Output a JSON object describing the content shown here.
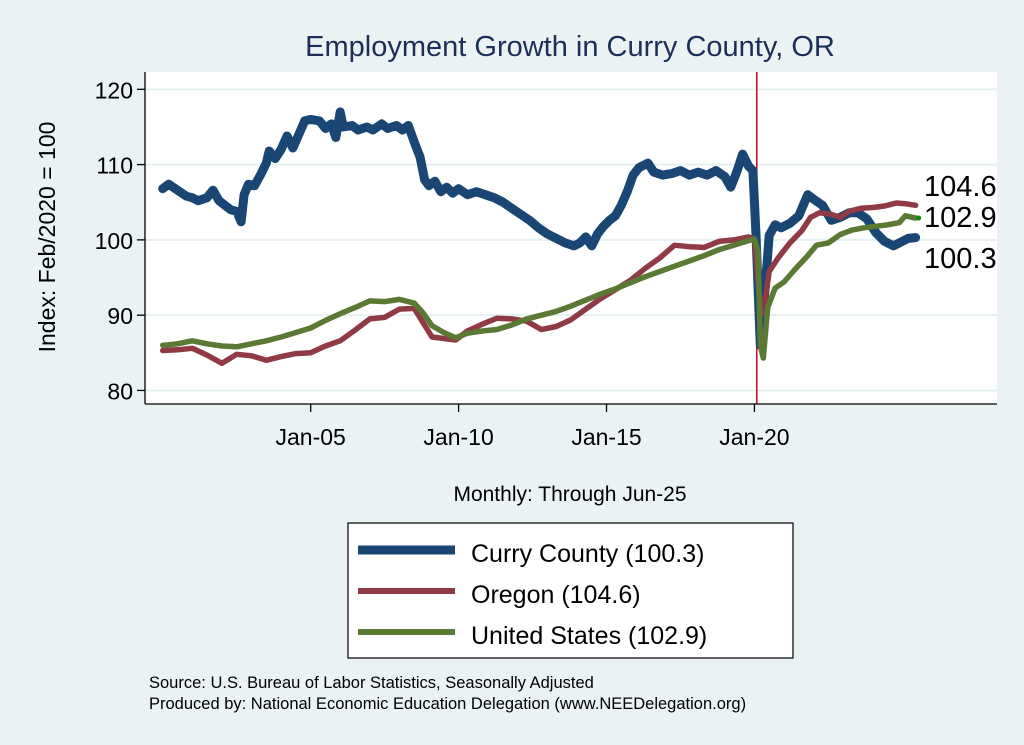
{
  "chart_data": {
    "type": "line",
    "title": "Employment Growth in Curry  County, OR",
    "xlabel": "Monthly: Through Jun-25",
    "ylabel": "Index: Feb/2020 = 100",
    "xlim": [
      1999.4,
      2028.2
    ],
    "ylim": [
      78.2,
      122.3
    ],
    "yticks": [
      80,
      90,
      100,
      110,
      120
    ],
    "xticks": [
      {
        "value": 2005,
        "label": "Jan-05"
      },
      {
        "value": 2010,
        "label": "Jan-10"
      },
      {
        "value": 2015,
        "label": "Jan-15"
      },
      {
        "value": 2020,
        "label": "Jan-20"
      }
    ],
    "grid": true,
    "reference_line": {
      "x": 2020.08,
      "color": "#c8102e"
    },
    "legend_position": "bottom",
    "series": [
      {
        "name": "Curry  County (100.3)",
        "color": "#1a4674",
        "end_label": "100.3",
        "width": "thick",
        "points": [
          [
            2000.0,
            106.8
          ],
          [
            2000.2,
            107.4
          ],
          [
            2000.5,
            106.6
          ],
          [
            2000.8,
            105.8
          ],
          [
            2001.0,
            105.6
          ],
          [
            2001.2,
            105.2
          ],
          [
            2001.5,
            105.6
          ],
          [
            2001.7,
            106.6
          ],
          [
            2001.9,
            105.2
          ],
          [
            2002.1,
            104.6
          ],
          [
            2002.3,
            104.0
          ],
          [
            2002.5,
            103.8
          ],
          [
            2002.65,
            102.4
          ],
          [
            2002.75,
            106.0
          ],
          [
            2002.9,
            107.4
          ],
          [
            2003.1,
            107.2
          ],
          [
            2003.3,
            108.6
          ],
          [
            2003.5,
            110.2
          ],
          [
            2003.6,
            111.8
          ],
          [
            2003.8,
            110.8
          ],
          [
            2004.0,
            112.0
          ],
          [
            2004.2,
            113.8
          ],
          [
            2004.4,
            112.2
          ],
          [
            2004.6,
            114.0
          ],
          [
            2004.8,
            115.8
          ],
          [
            2005.0,
            116.0
          ],
          [
            2005.3,
            115.8
          ],
          [
            2005.5,
            114.8
          ],
          [
            2005.7,
            115.4
          ],
          [
            2005.85,
            113.6
          ],
          [
            2006.0,
            117.0
          ],
          [
            2006.1,
            115.0
          ],
          [
            2006.4,
            115.2
          ],
          [
            2006.6,
            114.6
          ],
          [
            2006.9,
            115.0
          ],
          [
            2007.1,
            114.6
          ],
          [
            2007.4,
            115.4
          ],
          [
            2007.6,
            114.8
          ],
          [
            2007.9,
            115.2
          ],
          [
            2008.1,
            114.6
          ],
          [
            2008.3,
            115.2
          ],
          [
            2008.5,
            113.0
          ],
          [
            2008.7,
            111.0
          ],
          [
            2008.85,
            108.0
          ],
          [
            2009.0,
            107.2
          ],
          [
            2009.2,
            107.8
          ],
          [
            2009.4,
            106.4
          ],
          [
            2009.6,
            107.0
          ],
          [
            2009.8,
            106.2
          ],
          [
            2010.0,
            106.8
          ],
          [
            2010.3,
            106.0
          ],
          [
            2010.6,
            106.4
          ],
          [
            2010.9,
            106.0
          ],
          [
            2011.2,
            105.6
          ],
          [
            2011.5,
            105.0
          ],
          [
            2011.8,
            104.2
          ],
          [
            2012.1,
            103.4
          ],
          [
            2012.4,
            102.6
          ],
          [
            2012.7,
            101.6
          ],
          [
            2013.0,
            100.8
          ],
          [
            2013.3,
            100.2
          ],
          [
            2013.6,
            99.6
          ],
          [
            2013.9,
            99.2
          ],
          [
            2014.1,
            99.6
          ],
          [
            2014.3,
            100.4
          ],
          [
            2014.5,
            99.2
          ],
          [
            2014.7,
            100.8
          ],
          [
            2014.9,
            101.8
          ],
          [
            2015.1,
            102.6
          ],
          [
            2015.3,
            103.2
          ],
          [
            2015.5,
            104.6
          ],
          [
            2015.7,
            106.4
          ],
          [
            2015.9,
            108.6
          ],
          [
            2016.1,
            109.6
          ],
          [
            2016.4,
            110.2
          ],
          [
            2016.6,
            109.0
          ],
          [
            2016.9,
            108.6
          ],
          [
            2017.2,
            108.8
          ],
          [
            2017.5,
            109.2
          ],
          [
            2017.8,
            108.6
          ],
          [
            2018.1,
            109.0
          ],
          [
            2018.4,
            108.6
          ],
          [
            2018.7,
            109.2
          ],
          [
            2019.0,
            108.4
          ],
          [
            2019.2,
            107.0
          ],
          [
            2019.4,
            109.0
          ],
          [
            2019.6,
            111.4
          ],
          [
            2019.8,
            109.8
          ],
          [
            2019.95,
            109.2
          ],
          [
            2020.05,
            101.0
          ],
          [
            2020.2,
            86.0
          ],
          [
            2020.35,
            93.0
          ],
          [
            2020.5,
            100.6
          ],
          [
            2020.7,
            102.0
          ],
          [
            2020.9,
            101.6
          ],
          [
            2021.2,
            102.2
          ],
          [
            2021.5,
            103.2
          ],
          [
            2021.8,
            106.0
          ],
          [
            2022.0,
            105.4
          ],
          [
            2022.3,
            104.6
          ],
          [
            2022.6,
            102.6
          ],
          [
            2022.9,
            103.0
          ],
          [
            2023.2,
            103.6
          ],
          [
            2023.5,
            103.6
          ],
          [
            2023.8,
            102.8
          ],
          [
            2024.1,
            101.0
          ],
          [
            2024.4,
            99.8
          ],
          [
            2024.7,
            99.2
          ],
          [
            2025.0,
            99.8
          ],
          [
            2025.2,
            100.2
          ],
          [
            2025.45,
            100.3
          ]
        ]
      },
      {
        "name": "Oregon (104.6)",
        "color": "#8f3a45",
        "end_label": "104.6",
        "width": "medium",
        "points": [
          [
            2000.0,
            85.3
          ],
          [
            2000.5,
            85.4
          ],
          [
            2001.0,
            85.6
          ],
          [
            2001.5,
            84.7
          ],
          [
            2002.0,
            83.6
          ],
          [
            2002.5,
            84.8
          ],
          [
            2003.0,
            84.6
          ],
          [
            2003.5,
            84.0
          ],
          [
            2004.0,
            84.5
          ],
          [
            2004.5,
            84.9
          ],
          [
            2005.0,
            85.0
          ],
          [
            2005.5,
            85.9
          ],
          [
            2006.0,
            86.6
          ],
          [
            2006.5,
            88.0
          ],
          [
            2007.0,
            89.5
          ],
          [
            2007.5,
            89.7
          ],
          [
            2008.0,
            90.8
          ],
          [
            2008.5,
            90.9
          ],
          [
            2008.8,
            89.0
          ],
          [
            2009.1,
            87.1
          ],
          [
            2009.5,
            86.9
          ],
          [
            2009.9,
            86.7
          ],
          [
            2010.3,
            87.9
          ],
          [
            2010.8,
            88.8
          ],
          [
            2011.3,
            89.6
          ],
          [
            2011.8,
            89.5
          ],
          [
            2012.3,
            89.2
          ],
          [
            2012.8,
            88.1
          ],
          [
            2013.3,
            88.5
          ],
          [
            2013.8,
            89.4
          ],
          [
            2014.3,
            90.8
          ],
          [
            2014.8,
            92.2
          ],
          [
            2015.3,
            93.4
          ],
          [
            2015.8,
            94.6
          ],
          [
            2016.3,
            96.2
          ],
          [
            2016.8,
            97.6
          ],
          [
            2017.3,
            99.3
          ],
          [
            2017.8,
            99.1
          ],
          [
            2018.3,
            99.0
          ],
          [
            2018.8,
            99.8
          ],
          [
            2019.3,
            100.0
          ],
          [
            2019.8,
            100.4
          ],
          [
            2020.0,
            100.1
          ],
          [
            2020.15,
            93.0
          ],
          [
            2020.3,
            90.2
          ],
          [
            2020.5,
            95.8
          ],
          [
            2020.8,
            97.6
          ],
          [
            2021.2,
            99.6
          ],
          [
            2021.6,
            101.2
          ],
          [
            2021.9,
            103.0
          ],
          [
            2022.2,
            103.6
          ],
          [
            2022.6,
            103.4
          ],
          [
            2022.9,
            103.0
          ],
          [
            2023.2,
            103.8
          ],
          [
            2023.6,
            104.2
          ],
          [
            2024.0,
            104.3
          ],
          [
            2024.4,
            104.5
          ],
          [
            2024.8,
            104.9
          ],
          [
            2025.1,
            104.8
          ],
          [
            2025.45,
            104.6
          ]
        ]
      },
      {
        "name": "United States (102.9)",
        "color": "#5a7a34",
        "end_label": "102.9",
        "width": "medium",
        "points": [
          [
            2000.0,
            86.0
          ],
          [
            2000.5,
            86.2
          ],
          [
            2001.0,
            86.6
          ],
          [
            2001.5,
            86.2
          ],
          [
            2002.0,
            85.9
          ],
          [
            2002.5,
            85.8
          ],
          [
            2003.0,
            86.2
          ],
          [
            2003.5,
            86.6
          ],
          [
            2004.0,
            87.1
          ],
          [
            2004.5,
            87.7
          ],
          [
            2005.0,
            88.3
          ],
          [
            2005.5,
            89.3
          ],
          [
            2006.0,
            90.2
          ],
          [
            2006.5,
            91.0
          ],
          [
            2007.0,
            91.9
          ],
          [
            2007.5,
            91.8
          ],
          [
            2008.0,
            92.1
          ],
          [
            2008.5,
            91.6
          ],
          [
            2008.8,
            90.3
          ],
          [
            2009.1,
            88.6
          ],
          [
            2009.5,
            87.7
          ],
          [
            2009.9,
            87.0
          ],
          [
            2010.3,
            87.6
          ],
          [
            2010.8,
            87.9
          ],
          [
            2011.3,
            88.1
          ],
          [
            2011.8,
            88.7
          ],
          [
            2012.3,
            89.5
          ],
          [
            2012.8,
            90.0
          ],
          [
            2013.3,
            90.5
          ],
          [
            2013.8,
            91.2
          ],
          [
            2014.3,
            92.0
          ],
          [
            2014.8,
            92.8
          ],
          [
            2015.3,
            93.5
          ],
          [
            2015.8,
            94.3
          ],
          [
            2016.3,
            95.1
          ],
          [
            2016.8,
            95.8
          ],
          [
            2017.3,
            96.5
          ],
          [
            2017.8,
            97.2
          ],
          [
            2018.3,
            97.9
          ],
          [
            2018.8,
            98.7
          ],
          [
            2019.3,
            99.3
          ],
          [
            2019.8,
            99.9
          ],
          [
            2020.0,
            100.1
          ],
          [
            2020.12,
            98.5
          ],
          [
            2020.2,
            86.0
          ],
          [
            2020.3,
            84.3
          ],
          [
            2020.45,
            91.0
          ],
          [
            2020.7,
            93.6
          ],
          [
            2021.0,
            94.4
          ],
          [
            2021.4,
            96.2
          ],
          [
            2021.8,
            97.9
          ],
          [
            2022.1,
            99.3
          ],
          [
            2022.5,
            99.6
          ],
          [
            2022.9,
            100.7
          ],
          [
            2023.3,
            101.3
          ],
          [
            2023.7,
            101.6
          ],
          [
            2024.1,
            101.8
          ],
          [
            2024.5,
            102.0
          ],
          [
            2024.9,
            102.3
          ],
          [
            2025.1,
            103.2
          ],
          [
            2025.45,
            102.9
          ]
        ]
      }
    ]
  },
  "legend": [
    {
      "label": "Curry  County (100.3)"
    },
    {
      "label": "Oregon (104.6)"
    },
    {
      "label": "United States (102.9)"
    }
  ],
  "notes": {
    "source": "Source: U.S. Bureau of Labor Statistics, Seasonally Adjusted",
    "produced_by": "Produced by: National Economic Education Delegation (www.NEEDelegation.org)"
  }
}
